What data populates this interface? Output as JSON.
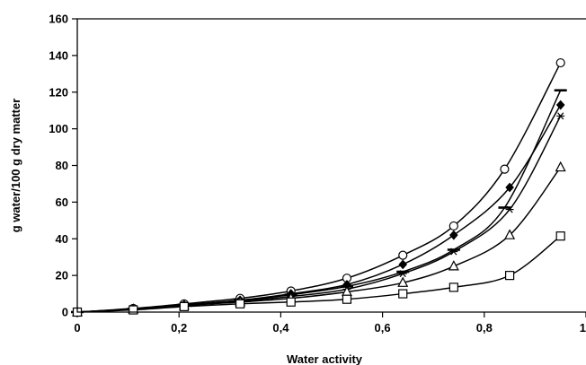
{
  "chart_data": {
    "type": "scatter",
    "title": "",
    "xlabel": "Water activity",
    "ylabel": "g water/100 g dry matter",
    "xlim": [
      0,
      1
    ],
    "ylim": [
      0,
      160
    ],
    "xticks": [
      "0",
      "0,2",
      "0,4",
      "0,6",
      "0,8",
      "1"
    ],
    "yticks": [
      "0",
      "20",
      "40",
      "60",
      "80",
      "100",
      "120",
      "140",
      "160"
    ],
    "grid": false,
    "legend": false,
    "series": [
      {
        "marker": "circle-open",
        "x": [
          0,
          0.11,
          0.21,
          0.32,
          0.42,
          0.53,
          0.64,
          0.74,
          0.84,
          0.95
        ],
        "y": [
          0,
          2,
          4.5,
          7.5,
          11.5,
          18.5,
          31,
          47,
          78,
          136
        ]
      },
      {
        "marker": "dash",
        "x": [
          0,
          0.11,
          0.21,
          0.32,
          0.42,
          0.53,
          0.64,
          0.74,
          0.84,
          0.95
        ],
        "y": [
          0,
          1.7,
          4,
          6.3,
          9.5,
          14,
          22,
          34,
          57,
          121
        ]
      },
      {
        "marker": "diamond-filled",
        "x": [
          0,
          0.11,
          0.21,
          0.32,
          0.42,
          0.53,
          0.64,
          0.74,
          0.85,
          0.95
        ],
        "y": [
          0,
          1.8,
          4,
          6.5,
          10,
          15,
          26,
          42,
          68,
          113
        ]
      },
      {
        "marker": "asterisk",
        "x": [
          0,
          0.11,
          0.21,
          0.32,
          0.42,
          0.53,
          0.64,
          0.74,
          0.85,
          0.95
        ],
        "y": [
          0,
          1.6,
          3.8,
          6,
          8.5,
          12.5,
          21,
          33,
          56,
          107
        ]
      },
      {
        "marker": "triangle-open",
        "x": [
          0,
          0.11,
          0.21,
          0.32,
          0.42,
          0.53,
          0.64,
          0.74,
          0.85,
          0.95
        ],
        "y": [
          0,
          1.5,
          3.5,
          5.5,
          7.5,
          11,
          16,
          25,
          42,
          79
        ]
      },
      {
        "marker": "square-open",
        "x": [
          0,
          0.11,
          0.21,
          0.32,
          0.42,
          0.53,
          0.64,
          0.74,
          0.85,
          0.95
        ],
        "y": [
          0,
          1.2,
          3,
          4.5,
          5.5,
          7,
          10,
          13.5,
          20,
          41.5
        ]
      }
    ]
  }
}
